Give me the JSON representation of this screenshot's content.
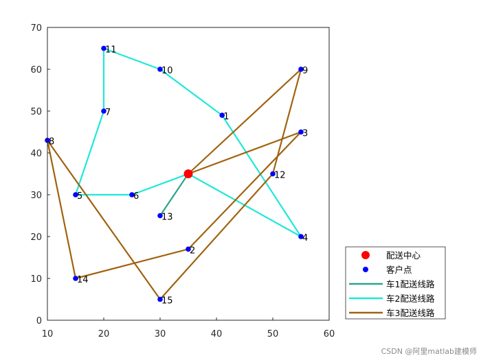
{
  "chart_data": {
    "type": "line",
    "title": "",
    "xlabel": "",
    "ylabel": "",
    "xlim": [
      10,
      60
    ],
    "ylim": [
      0,
      70
    ],
    "xticks": [
      10,
      20,
      30,
      40,
      50,
      60
    ],
    "yticks": [
      0,
      10,
      20,
      30,
      40,
      50,
      60,
      70
    ],
    "depot": {
      "label": "配送中心",
      "x": 35,
      "y": 35,
      "color": "#ff0000"
    },
    "customers": {
      "label": "客户点",
      "color": "#0000ff",
      "points": [
        {
          "id": "1",
          "x": 41,
          "y": 49
        },
        {
          "id": "2",
          "x": 35,
          "y": 17
        },
        {
          "id": "3",
          "x": 55,
          "y": 45
        },
        {
          "id": "4",
          "x": 55,
          "y": 20
        },
        {
          "id": "5",
          "x": 15,
          "y": 30
        },
        {
          "id": "6",
          "x": 25,
          "y": 30
        },
        {
          "id": "7",
          "x": 20,
          "y": 50
        },
        {
          "id": "8",
          "x": 10,
          "y": 43
        },
        {
          "id": "9",
          "x": 55,
          "y": 60
        },
        {
          "id": "10",
          "x": 30,
          "y": 60
        },
        {
          "id": "11",
          "x": 20,
          "y": 65
        },
        {
          "id": "12",
          "x": 50,
          "y": 35
        },
        {
          "id": "13",
          "x": 30,
          "y": 25
        },
        {
          "id": "14",
          "x": 15,
          "y": 10
        },
        {
          "id": "15",
          "x": 30,
          "y": 5
        }
      ]
    },
    "series": [
      {
        "name": "车1配送线路",
        "color": "#2aa58a",
        "route": [
          "D",
          "13"
        ]
      },
      {
        "name": "车2配送线路",
        "color": "#1ee8d8",
        "route": [
          "D",
          "6",
          "5",
          "7",
          "11",
          "10",
          "1",
          "4",
          "D"
        ]
      },
      {
        "name": "车3配送线路",
        "color": "#a0620e",
        "route": [
          "D",
          "9",
          "12",
          "15",
          "8",
          "14",
          "2",
          "3",
          "D"
        ]
      }
    ],
    "legend_position": "bottom-right",
    "grid": false
  },
  "watermark": "CSDN @阿里matlab建模师"
}
